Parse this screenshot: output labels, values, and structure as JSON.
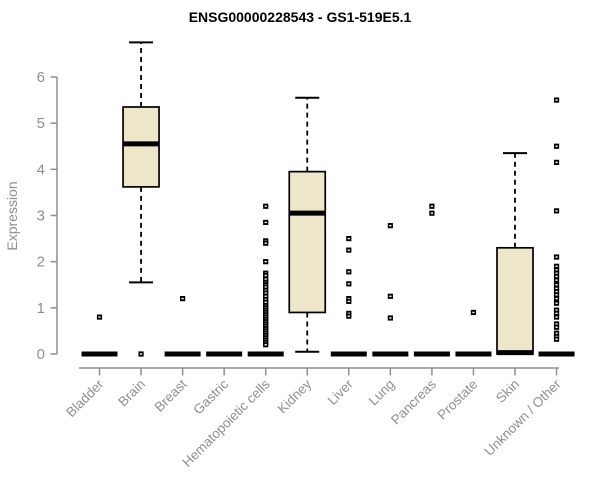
{
  "chart_data": {
    "type": "box",
    "title": "ENSG00000228543 - GS1-519E5.1",
    "ylabel": "Expression",
    "xlabel": "",
    "ylim": [
      0,
      6.9
    ],
    "yticks": [
      0,
      1,
      2,
      3,
      4,
      5,
      6
    ],
    "grid": false,
    "legend": null,
    "categories": [
      "Bladder",
      "Brain",
      "Breast",
      "Gastric",
      "Hematopoietic cells",
      "Kidney",
      "Liver",
      "Lung",
      "Pancreas",
      "Prostate",
      "Skin",
      "Unknown / Other"
    ],
    "boxes": [
      {
        "category": "Bladder",
        "low": 0,
        "q1": 0,
        "median": 0,
        "q3": 0,
        "high": 0,
        "outliers": [
          0.8
        ]
      },
      {
        "category": "Brain",
        "low": 1.55,
        "q1": 3.62,
        "median": 4.55,
        "q3": 5.35,
        "high": 6.75,
        "outliers": [
          0
        ]
      },
      {
        "category": "Breast",
        "low": 0,
        "q1": 0,
        "median": 0,
        "q3": 0,
        "high": 0,
        "outliers": [
          1.2
        ]
      },
      {
        "category": "Gastric",
        "low": 0,
        "q1": 0,
        "median": 0,
        "q3": 0,
        "high": 0,
        "outliers": []
      },
      {
        "category": "Hematopoietic cells",
        "low": 0,
        "q1": 0,
        "median": 0,
        "q3": 0,
        "high": 0,
        "outliers": [
          3.2,
          2.85,
          2.45,
          2.4,
          2.0,
          1.75,
          1.7,
          1.62,
          1.55,
          1.5,
          1.45,
          1.38,
          1.32,
          1.25,
          1.18,
          1.12,
          1.05,
          1.0,
          0.95,
          0.9,
          0.85,
          0.8,
          0.75,
          0.7,
          0.65,
          0.6,
          0.55,
          0.5,
          0.45,
          0.4,
          0.35,
          0.3,
          0.25,
          0.2
        ]
      },
      {
        "category": "Kidney",
        "low": 0.05,
        "q1": 0.9,
        "median": 3.05,
        "q3": 3.95,
        "high": 5.55,
        "outliers": []
      },
      {
        "category": "Liver",
        "low": 0,
        "q1": 0,
        "median": 0,
        "q3": 0,
        "high": 0,
        "outliers": [
          2.5,
          2.25,
          1.78,
          1.52,
          1.2,
          1.14,
          0.88,
          0.82
        ]
      },
      {
        "category": "Lung",
        "low": 0,
        "q1": 0,
        "median": 0,
        "q3": 0,
        "high": 0,
        "outliers": [
          2.78,
          1.25,
          0.78
        ]
      },
      {
        "category": "Pancreas",
        "low": 0,
        "q1": 0,
        "median": 0,
        "q3": 0,
        "high": 0,
        "outliers": [
          3.2,
          3.05
        ]
      },
      {
        "category": "Prostate",
        "low": 0,
        "q1": 0,
        "median": 0,
        "q3": 0,
        "high": 0,
        "outliers": [
          0.9
        ]
      },
      {
        "category": "Skin",
        "low": 0,
        "q1": 0,
        "median": 0.03,
        "q3": 2.3,
        "high": 4.35,
        "outliers": []
      },
      {
        "category": "Unknown / Other",
        "low": 0,
        "q1": 0,
        "median": 0,
        "q3": 0,
        "high": 0,
        "outliers": [
          5.5,
          4.5,
          4.15,
          3.1,
          2.1,
          1.9,
          1.82,
          1.75,
          1.68,
          1.6,
          1.5,
          1.42,
          1.35,
          1.28,
          1.2,
          1.1,
          0.95,
          0.88,
          0.8,
          0.65,
          0.58,
          0.45,
          0.38,
          0.32
        ]
      }
    ],
    "colors": {
      "box_fill": "#EDE6C8",
      "box_stroke": "#000000",
      "median": "#000000",
      "outlier": "#000000",
      "axis": "#8f8f8f",
      "title": "#000000",
      "background": "#ffffff"
    }
  }
}
